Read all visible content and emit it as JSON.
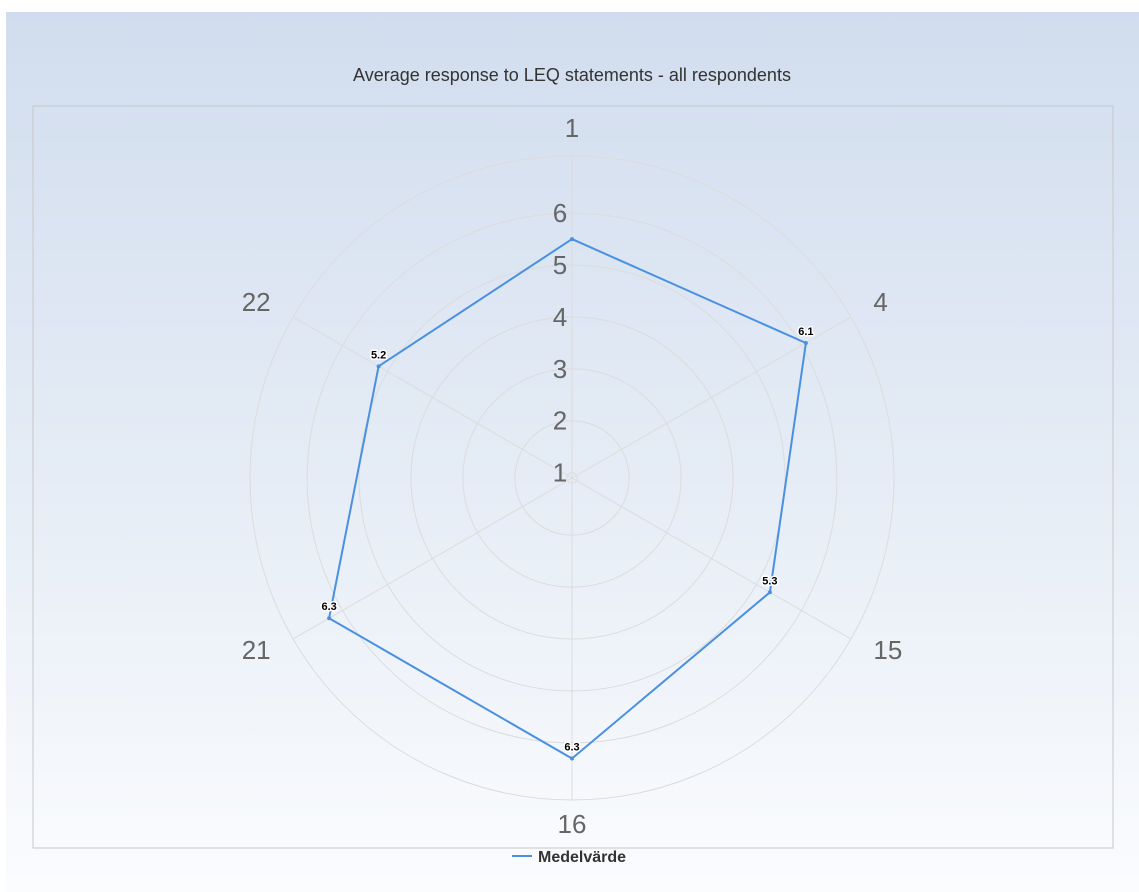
{
  "chart_data": {
    "type": "radar",
    "title": "Average response to LEQ statements - all respondents",
    "categories": [
      "1",
      "4",
      "15",
      "16",
      "21",
      "22"
    ],
    "radial_ticks": [
      "1",
      "2",
      "3",
      "4",
      "5",
      "6"
    ],
    "rmin": 0.9,
    "rmax": 7.1,
    "series": [
      {
        "name": "Medelvärde",
        "values": [
          5.5,
          6.1,
          5.3,
          6.3,
          6.3,
          5.2
        ],
        "data_labels": [
          "",
          "6.1",
          "5.3",
          "6.3",
          "6.3",
          "5.2"
        ]
      }
    ],
    "legend_position": "bottom-center",
    "grid": true
  },
  "colors": {
    "series": "#4a90e2",
    "grid": "#dcdcdc",
    "plot_border": "#c8c8c8"
  }
}
